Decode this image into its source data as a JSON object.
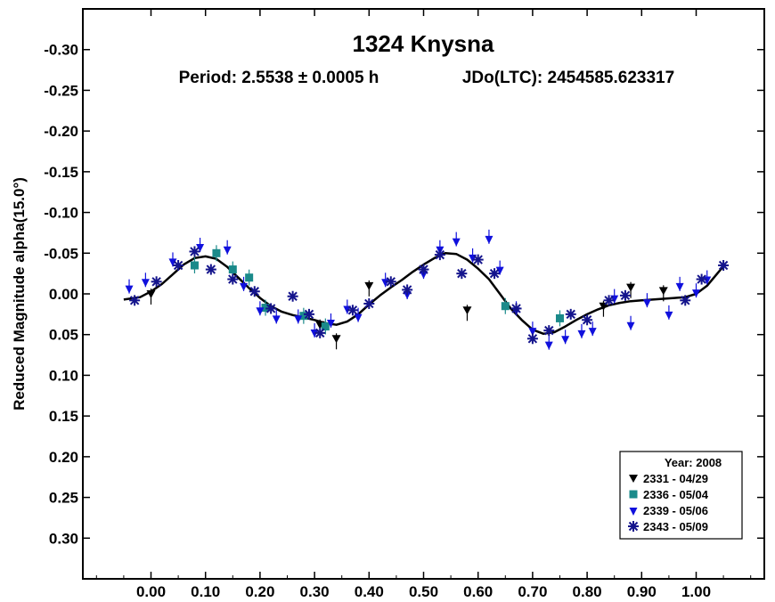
{
  "chart_data": {
    "type": "scatter",
    "title": "1324 Knysna",
    "subtitle_period": "Period: 2.5538 ± 0.0005 h",
    "subtitle_epoch": "JDo(LTC): 2454585.623317",
    "xlabel": "",
    "ylabel": "Reduced Magnitude alpha(15.0°)",
    "xlim": [
      -0.125,
      1.125
    ],
    "ylim": [
      -0.35,
      0.35
    ],
    "y_inverted": true,
    "x_ticks": [
      "0.00",
      "0.10",
      "0.20",
      "0.30",
      "0.40",
      "0.50",
      "0.60",
      "0.70",
      "0.80",
      "0.90",
      "1.00"
    ],
    "y_ticks": [
      "-0.30",
      "-0.25",
      "-0.20",
      "-0.15",
      "-0.10",
      "-0.05",
      "0.00",
      "0.05",
      "0.10",
      "0.15",
      "0.20",
      "0.25",
      "0.30"
    ],
    "legend": {
      "title": "Year: 2008",
      "position": "bottom-right",
      "entries": [
        "2331 - 04/29",
        "2336 - 05/04",
        "2339 - 05/06",
        "2343 - 05/09"
      ]
    },
    "colors": {
      "2331": "#000000",
      "2336": "#1a8a8a",
      "2339": "#1010dd",
      "2343": "#14148c",
      "fit": "#000000"
    },
    "fit_curve": {
      "x": [
        -0.05,
        -0.02,
        0.0,
        0.02,
        0.04,
        0.06,
        0.08,
        0.1,
        0.12,
        0.14,
        0.16,
        0.18,
        0.2,
        0.22,
        0.24,
        0.26,
        0.28,
        0.3,
        0.32,
        0.34,
        0.36,
        0.38,
        0.4,
        0.42,
        0.44,
        0.46,
        0.48,
        0.5,
        0.52,
        0.54,
        0.56,
        0.58,
        0.6,
        0.62,
        0.64,
        0.66,
        0.68,
        0.7,
        0.72,
        0.74,
        0.76,
        0.78,
        0.8,
        0.82,
        0.84,
        0.86,
        0.88,
        0.9,
        0.92,
        0.94,
        0.96,
        0.98,
        1.0,
        1.02,
        1.05
      ],
      "y": [
        0.007,
        0.004,
        -0.003,
        -0.012,
        -0.024,
        -0.036,
        -0.044,
        -0.046,
        -0.043,
        -0.033,
        -0.02,
        -0.007,
        0.005,
        0.015,
        0.022,
        0.026,
        0.029,
        0.032,
        0.036,
        0.038,
        0.034,
        0.025,
        0.013,
        0.002,
        -0.008,
        -0.017,
        -0.027,
        -0.036,
        -0.044,
        -0.05,
        -0.049,
        -0.042,
        -0.031,
        -0.018,
        0.0,
        0.018,
        0.032,
        0.044,
        0.049,
        0.047,
        0.04,
        0.032,
        0.025,
        0.019,
        0.014,
        0.011,
        0.009,
        0.008,
        0.007,
        0.006,
        0.005,
        0.004,
        0.0,
        -0.01,
        -0.034
      ]
    },
    "series": [
      {
        "name": "2331 - 04/29",
        "marker": "triangle",
        "x": [
          0.0,
          0.34,
          0.4,
          0.58,
          0.88,
          0.94,
          0.83,
          0.31
        ],
        "y": [
          0.0,
          0.055,
          -0.01,
          0.02,
          -0.008,
          -0.004,
          0.015,
          0.038
        ]
      },
      {
        "name": "2336 - 05/04",
        "marker": "square",
        "x": [
          0.08,
          0.12,
          0.15,
          0.18,
          0.21,
          0.28,
          0.32,
          0.65,
          0.75
        ],
        "y": [
          -0.035,
          -0.05,
          -0.03,
          -0.02,
          0.017,
          0.027,
          0.04,
          0.015,
          0.03
        ]
      },
      {
        "name": "2339 - 05/06",
        "marker": "inverted-triangle",
        "x": [
          -0.04,
          -0.01,
          0.04,
          0.09,
          0.14,
          0.17,
          0.2,
          0.23,
          0.27,
          0.3,
          0.33,
          0.36,
          0.38,
          0.43,
          0.47,
          0.5,
          0.53,
          0.56,
          0.59,
          0.62,
          0.64,
          0.67,
          0.7,
          0.73,
          0.76,
          0.79,
          0.81,
          0.85,
          0.88,
          0.91,
          0.95,
          0.97,
          1.0,
          1.02
        ],
        "y": [
          -0.007,
          -0.015,
          -0.04,
          -0.058,
          -0.055,
          -0.01,
          0.02,
          0.03,
          0.03,
          0.047,
          0.035,
          0.018,
          0.028,
          -0.015,
          0.0,
          -0.025,
          -0.055,
          -0.065,
          -0.045,
          -0.068,
          -0.03,
          0.02,
          0.045,
          0.062,
          0.055,
          0.048,
          0.045,
          0.005,
          0.038,
          0.01,
          0.025,
          -0.01,
          -0.002,
          -0.018
        ]
      },
      {
        "name": "2343 - 05/09",
        "marker": "asterisk",
        "x": [
          -0.03,
          0.01,
          0.05,
          0.08,
          0.11,
          0.15,
          0.19,
          0.22,
          0.26,
          0.29,
          0.31,
          0.37,
          0.4,
          0.44,
          0.47,
          0.5,
          0.53,
          0.57,
          0.6,
          0.63,
          0.67,
          0.7,
          0.73,
          0.77,
          0.8,
          0.84,
          0.87,
          0.98,
          1.01,
          1.05
        ],
        "y": [
          0.008,
          -0.015,
          -0.035,
          -0.052,
          -0.03,
          -0.018,
          -0.003,
          0.018,
          0.003,
          0.025,
          0.048,
          0.02,
          0.012,
          -0.015,
          -0.005,
          -0.03,
          -0.048,
          -0.025,
          -0.042,
          -0.025,
          0.018,
          0.055,
          0.045,
          0.025,
          0.032,
          0.008,
          0.002,
          0.008,
          -0.018,
          -0.035
        ]
      }
    ]
  }
}
